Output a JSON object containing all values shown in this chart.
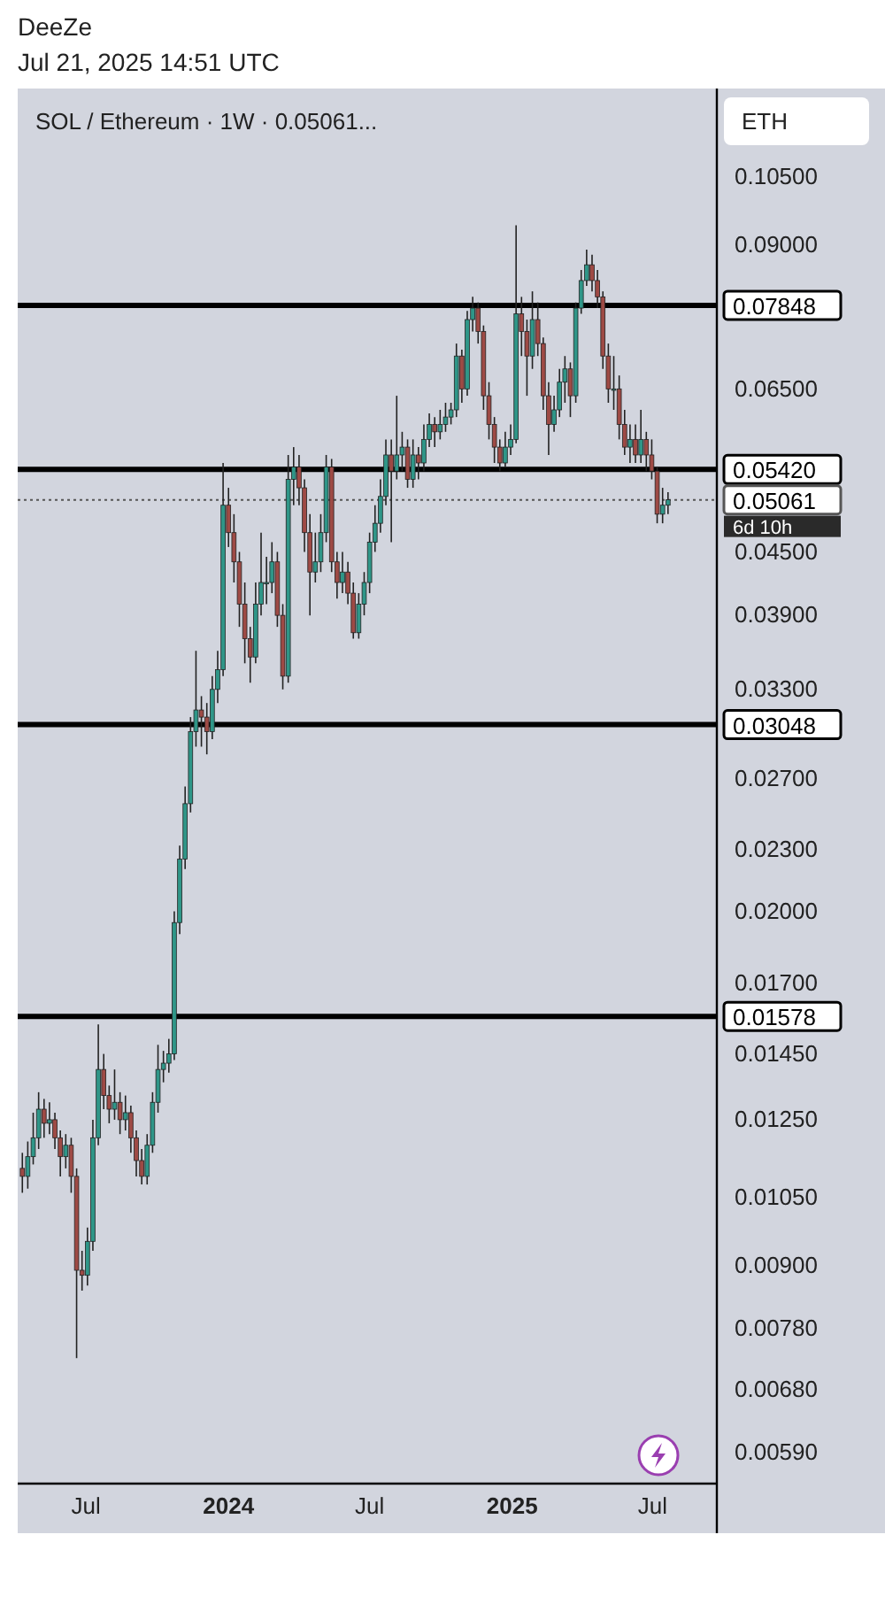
{
  "chart_data": {
    "type": "candlestick",
    "title": "SOL / Ethereum · 1W · 0.05061...",
    "annotations": [
      "DeeZe",
      "Jul 21, 2025 14:51 UTC",
      "ETH",
      "6d 10h"
    ],
    "log": "y",
    "ylim": [
      0.0055,
      0.128
    ],
    "yticks": [
      {
        "value": 0.105,
        "label": "0.10500"
      },
      {
        "value": 0.09,
        "label": "0.09000"
      },
      {
        "value": 0.065,
        "label": "0.06500"
      },
      {
        "value": 0.045,
        "label": "0.04500"
      },
      {
        "value": 0.039,
        "label": "0.03900"
      },
      {
        "value": 0.033,
        "label": "0.03300"
      },
      {
        "value": 0.027,
        "label": "0.02700"
      },
      {
        "value": 0.023,
        "label": "0.02300"
      },
      {
        "value": 0.02,
        "label": "0.02000"
      },
      {
        "value": 0.017,
        "label": "0.01700"
      },
      {
        "value": 0.0145,
        "label": "0.01450"
      },
      {
        "value": 0.0125,
        "label": "0.01250"
      },
      {
        "value": 0.0105,
        "label": "0.01050"
      },
      {
        "value": 0.009,
        "label": "0.00900"
      },
      {
        "value": 0.0078,
        "label": "0.00780"
      },
      {
        "value": 0.0068,
        "label": "0.00680"
      },
      {
        "value": 0.0059,
        "label": "0.00590"
      }
    ],
    "xlim": [
      "2023-04-04",
      "2025-09-22"
    ],
    "xticks": [
      {
        "value": "2023-07-01",
        "label": "Jul"
      },
      {
        "value": "2024-01-01",
        "label": "2024"
      },
      {
        "value": "2024-07-01",
        "label": "Jul"
      },
      {
        "value": "2025-01-01",
        "label": "2025"
      },
      {
        "value": "2025-07-01",
        "label": "Jul"
      }
    ],
    "ref_lines": [
      {
        "axis": "y",
        "value": 0.07848,
        "label": "0.07848",
        "color": "#000000",
        "line_style": "solid"
      },
      {
        "axis": "y",
        "value": 0.0542,
        "label": "0.05420",
        "color": "#000000",
        "line_style": "solid"
      },
      {
        "axis": "y",
        "value": 0.03048,
        "label": "0.03048",
        "color": "#000000",
        "line_style": "solid"
      },
      {
        "axis": "y",
        "value": 0.01578,
        "label": "0.01578",
        "color": "#000000",
        "line_style": "solid"
      },
      {
        "axis": "y",
        "value": 0.05061,
        "label": "0.05061",
        "color": "#555555",
        "line_style": "dotted"
      }
    ],
    "x": [
      "2023-04-10",
      "2023-04-17",
      "2023-04-24",
      "2023-05-01",
      "2023-05-08",
      "2023-05-15",
      "2023-05-22",
      "2023-05-29",
      "2023-06-05",
      "2023-06-12",
      "2023-06-19",
      "2023-06-26",
      "2023-07-03",
      "2023-07-10",
      "2023-07-17",
      "2023-07-24",
      "2023-07-31",
      "2023-08-07",
      "2023-08-14",
      "2023-08-21",
      "2023-08-28",
      "2023-09-04",
      "2023-09-11",
      "2023-09-18",
      "2023-09-25",
      "2023-10-02",
      "2023-10-09",
      "2023-10-16",
      "2023-10-23",
      "2023-10-30",
      "2023-11-06",
      "2023-11-13",
      "2023-11-20",
      "2023-11-27",
      "2023-12-04",
      "2023-12-11",
      "2023-12-18",
      "2023-12-25",
      "2024-01-01",
      "2024-01-08",
      "2024-01-15",
      "2024-01-22",
      "2024-01-29",
      "2024-02-05",
      "2024-02-12",
      "2024-02-19",
      "2024-02-26",
      "2024-03-04",
      "2024-03-11",
      "2024-03-18",
      "2024-03-25",
      "2024-04-01",
      "2024-04-08",
      "2024-04-15",
      "2024-04-22",
      "2024-04-29",
      "2024-05-06",
      "2024-05-13",
      "2024-05-20",
      "2024-05-27",
      "2024-06-03",
      "2024-06-10",
      "2024-06-17",
      "2024-06-24",
      "2024-07-01",
      "2024-07-08",
      "2024-07-15",
      "2024-07-22",
      "2024-07-29",
      "2024-08-05",
      "2024-08-12",
      "2024-08-19",
      "2024-08-26",
      "2024-09-02",
      "2024-09-09",
      "2024-09-16",
      "2024-09-23",
      "2024-09-30",
      "2024-10-07",
      "2024-10-14",
      "2024-10-21",
      "2024-10-28",
      "2024-11-04",
      "2024-11-11",
      "2024-11-18",
      "2024-11-25",
      "2024-12-02",
      "2024-12-09",
      "2024-12-16",
      "2024-12-23",
      "2024-12-30",
      "2025-01-06",
      "2025-01-13",
      "2025-01-20",
      "2025-01-27",
      "2025-02-03",
      "2025-02-10",
      "2025-02-17",
      "2025-02-24",
      "2025-03-03",
      "2025-03-10",
      "2025-03-17",
      "2025-03-24",
      "2025-03-31",
      "2025-04-07",
      "2025-04-14",
      "2025-04-21",
      "2025-04-28",
      "2025-05-05",
      "2025-05-12",
      "2025-05-19",
      "2025-05-26",
      "2025-06-02",
      "2025-06-09",
      "2025-06-16",
      "2025-06-23",
      "2025-06-30",
      "2025-07-07",
      "2025-07-14",
      "2025-07-21"
    ],
    "ohlc": [
      [
        0.0112,
        0.0116,
        0.0106,
        0.011
      ],
      [
        0.011,
        0.0119,
        0.0107,
        0.0115
      ],
      [
        0.0115,
        0.0127,
        0.0113,
        0.012
      ],
      [
        0.012,
        0.0133,
        0.0117,
        0.0128
      ],
      [
        0.0128,
        0.0131,
        0.012,
        0.0124
      ],
      [
        0.0124,
        0.013,
        0.0121,
        0.0125
      ],
      [
        0.0125,
        0.0127,
        0.0117,
        0.012
      ],
      [
        0.012,
        0.0122,
        0.011,
        0.0115
      ],
      [
        0.0115,
        0.0121,
        0.0112,
        0.0118
      ],
      [
        0.0118,
        0.012,
        0.0106,
        0.011
      ],
      [
        0.011,
        0.0112,
        0.0073,
        0.0089
      ],
      [
        0.0089,
        0.0093,
        0.0085,
        0.0088
      ],
      [
        0.0088,
        0.0098,
        0.0086,
        0.0095
      ],
      [
        0.0095,
        0.0125,
        0.0093,
        0.012
      ],
      [
        0.012,
        0.0155,
        0.0118,
        0.014
      ],
      [
        0.014,
        0.0145,
        0.0128,
        0.0132
      ],
      [
        0.0132,
        0.0135,
        0.0124,
        0.0128
      ],
      [
        0.0128,
        0.014,
        0.0125,
        0.013
      ],
      [
        0.013,
        0.0133,
        0.0121,
        0.0125
      ],
      [
        0.0125,
        0.0132,
        0.0122,
        0.0127
      ],
      [
        0.0127,
        0.0129,
        0.0116,
        0.012
      ],
      [
        0.012,
        0.0122,
        0.011,
        0.0114
      ],
      [
        0.0114,
        0.0117,
        0.0108,
        0.011
      ],
      [
        0.011,
        0.0121,
        0.0108,
        0.0118
      ],
      [
        0.0118,
        0.0133,
        0.0116,
        0.013
      ],
      [
        0.013,
        0.0148,
        0.0127,
        0.014
      ],
      [
        0.014,
        0.0146,
        0.0136,
        0.0142
      ],
      [
        0.0142,
        0.015,
        0.0139,
        0.0145
      ],
      [
        0.0145,
        0.02,
        0.0143,
        0.0195
      ],
      [
        0.0195,
        0.0232,
        0.019,
        0.0225
      ],
      [
        0.0225,
        0.0265,
        0.022,
        0.0255
      ],
      [
        0.0255,
        0.031,
        0.025,
        0.03
      ],
      [
        0.03,
        0.036,
        0.029,
        0.0315
      ],
      [
        0.0315,
        0.0325,
        0.029,
        0.031
      ],
      [
        0.031,
        0.032,
        0.0285,
        0.03
      ],
      [
        0.03,
        0.034,
        0.0295,
        0.033
      ],
      [
        0.033,
        0.036,
        0.032,
        0.0345
      ],
      [
        0.0345,
        0.055,
        0.034,
        0.05
      ],
      [
        0.05,
        0.052,
        0.0455,
        0.047
      ],
      [
        0.047,
        0.049,
        0.042,
        0.044
      ],
      [
        0.044,
        0.045,
        0.038,
        0.04
      ],
      [
        0.04,
        0.042,
        0.035,
        0.037
      ],
      [
        0.037,
        0.038,
        0.0335,
        0.0355
      ],
      [
        0.0355,
        0.042,
        0.035,
        0.04
      ],
      [
        0.04,
        0.047,
        0.039,
        0.042
      ],
      [
        0.042,
        0.0445,
        0.04,
        0.042
      ],
      [
        0.042,
        0.046,
        0.041,
        0.044
      ],
      [
        0.044,
        0.045,
        0.038,
        0.039
      ],
      [
        0.039,
        0.04,
        0.033,
        0.034
      ],
      [
        0.034,
        0.056,
        0.0335,
        0.053
      ],
      [
        0.053,
        0.057,
        0.05,
        0.0545
      ],
      [
        0.0545,
        0.056,
        0.05,
        0.052
      ],
      [
        0.052,
        0.053,
        0.045,
        0.047
      ],
      [
        0.047,
        0.049,
        0.039,
        0.043
      ],
      [
        0.043,
        0.047,
        0.042,
        0.044
      ],
      [
        0.044,
        0.049,
        0.043,
        0.047
      ],
      [
        0.047,
        0.056,
        0.046,
        0.0545
      ],
      [
        0.0545,
        0.0555,
        0.043,
        0.044
      ],
      [
        0.044,
        0.045,
        0.0405,
        0.042
      ],
      [
        0.042,
        0.045,
        0.041,
        0.043
      ],
      [
        0.043,
        0.044,
        0.04,
        0.041
      ],
      [
        0.041,
        0.042,
        0.037,
        0.0375
      ],
      [
        0.0375,
        0.041,
        0.037,
        0.04
      ],
      [
        0.04,
        0.043,
        0.039,
        0.042
      ],
      [
        0.042,
        0.047,
        0.041,
        0.046
      ],
      [
        0.046,
        0.05,
        0.045,
        0.048
      ],
      [
        0.048,
        0.053,
        0.047,
        0.051
      ],
      [
        0.051,
        0.058,
        0.05,
        0.056
      ],
      [
        0.056,
        0.058,
        0.046,
        0.054
      ],
      [
        0.054,
        0.064,
        0.053,
        0.056
      ],
      [
        0.056,
        0.059,
        0.054,
        0.057
      ],
      [
        0.057,
        0.058,
        0.052,
        0.053
      ],
      [
        0.053,
        0.058,
        0.052,
        0.056
      ],
      [
        0.056,
        0.057,
        0.053,
        0.055
      ],
      [
        0.055,
        0.06,
        0.054,
        0.058
      ],
      [
        0.058,
        0.0615,
        0.057,
        0.06
      ],
      [
        0.06,
        0.061,
        0.057,
        0.059
      ],
      [
        0.059,
        0.062,
        0.058,
        0.06
      ],
      [
        0.06,
        0.063,
        0.059,
        0.061
      ],
      [
        0.061,
        0.063,
        0.06,
        0.062
      ],
      [
        0.062,
        0.072,
        0.061,
        0.07
      ],
      [
        0.07,
        0.071,
        0.063,
        0.065
      ],
      [
        0.065,
        0.0775,
        0.064,
        0.076
      ],
      [
        0.076,
        0.08,
        0.074,
        0.078
      ],
      [
        0.078,
        0.079,
        0.072,
        0.074
      ],
      [
        0.074,
        0.075,
        0.062,
        0.064
      ],
      [
        0.064,
        0.066,
        0.058,
        0.06
      ],
      [
        0.06,
        0.061,
        0.055,
        0.057
      ],
      [
        0.057,
        0.058,
        0.054,
        0.055
      ],
      [
        0.055,
        0.059,
        0.0545,
        0.057
      ],
      [
        0.057,
        0.06,
        0.056,
        0.058
      ],
      [
        0.058,
        0.094,
        0.0575,
        0.077
      ],
      [
        0.077,
        0.08,
        0.07,
        0.074
      ],
      [
        0.074,
        0.076,
        0.064,
        0.07
      ],
      [
        0.07,
        0.081,
        0.068,
        0.076
      ],
      [
        0.076,
        0.079,
        0.07,
        0.072
      ],
      [
        0.072,
        0.073,
        0.062,
        0.064
      ],
      [
        0.064,
        0.066,
        0.056,
        0.06
      ],
      [
        0.06,
        0.064,
        0.059,
        0.062
      ],
      [
        0.062,
        0.068,
        0.061,
        0.066
      ],
      [
        0.066,
        0.07,
        0.063,
        0.068
      ],
      [
        0.068,
        0.069,
        0.061,
        0.064
      ],
      [
        0.064,
        0.079,
        0.063,
        0.078
      ],
      [
        0.078,
        0.085,
        0.077,
        0.083
      ],
      [
        0.083,
        0.089,
        0.082,
        0.086
      ],
      [
        0.086,
        0.088,
        0.081,
        0.083
      ],
      [
        0.083,
        0.085,
        0.078,
        0.08
      ],
      [
        0.08,
        0.081,
        0.068,
        0.07
      ],
      [
        0.07,
        0.072,
        0.063,
        0.065
      ],
      [
        0.065,
        0.07,
        0.062,
        0.065
      ],
      [
        0.065,
        0.067,
        0.058,
        0.06
      ],
      [
        0.06,
        0.062,
        0.056,
        0.057
      ],
      [
        0.057,
        0.06,
        0.055,
        0.058
      ],
      [
        0.058,
        0.06,
        0.055,
        0.056
      ],
      [
        0.056,
        0.062,
        0.055,
        0.058
      ],
      [
        0.058,
        0.059,
        0.054,
        0.056
      ],
      [
        0.056,
        0.058,
        0.053,
        0.054
      ],
      [
        0.054,
        0.0545,
        0.048,
        0.049
      ],
      [
        0.049,
        0.052,
        0.048,
        0.05
      ],
      [
        0.05,
        0.0515,
        0.049,
        0.05061
      ]
    ]
  }
}
